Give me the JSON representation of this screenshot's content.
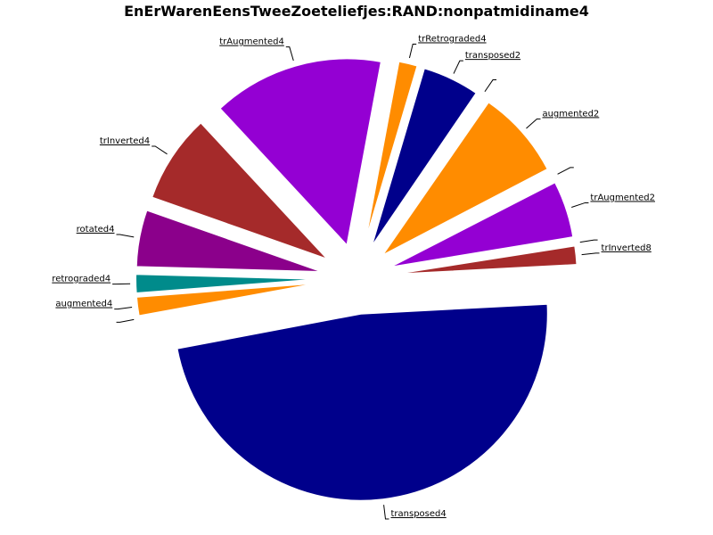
{
  "chart_data": {
    "type": "pie",
    "title": "EnErWarenEensTweeZoeteliefjes:RAND:nonpatmidiname4",
    "slices": [
      {
        "label": "trInverted8",
        "value": 1.5,
        "color": "#a52a2a"
      },
      {
        "label": "",
        "value": 0.1,
        "color": "#a52a2a"
      },
      {
        "label": "trAugmented2",
        "value": 4.5,
        "color": "#9400d3"
      },
      {
        "label": "",
        "value": 0.1,
        "color": "#9400d3"
      },
      {
        "label": "augmented2",
        "value": 7.0,
        "color": "#ff8c00"
      },
      {
        "label": "",
        "value": 0.1,
        "color": "#ff8c00"
      },
      {
        "label": "transposed2",
        "value": 4.5,
        "color": "#00008b"
      },
      {
        "label": "trRetrograded4",
        "value": 1.5,
        "color": "#ff8c00"
      },
      {
        "label": "trAugmented4",
        "value": 13.5,
        "color": "#9400d3"
      },
      {
        "label": "trInverted4",
        "value": 7.0,
        "color": "#a52a2a"
      },
      {
        "label": "rotated4",
        "value": 4.5,
        "color": "#8b008b"
      },
      {
        "label": "retrograded4",
        "value": 1.5,
        "color": "#008b8b"
      },
      {
        "label": "augmented4",
        "value": 1.5,
        "color": "#ff8c00"
      },
      {
        "label": "",
        "value": 0.1,
        "color": "#ff8c00"
      },
      {
        "label": "transposed4",
        "value": 43.5,
        "color": "#00008b"
      }
    ]
  }
}
